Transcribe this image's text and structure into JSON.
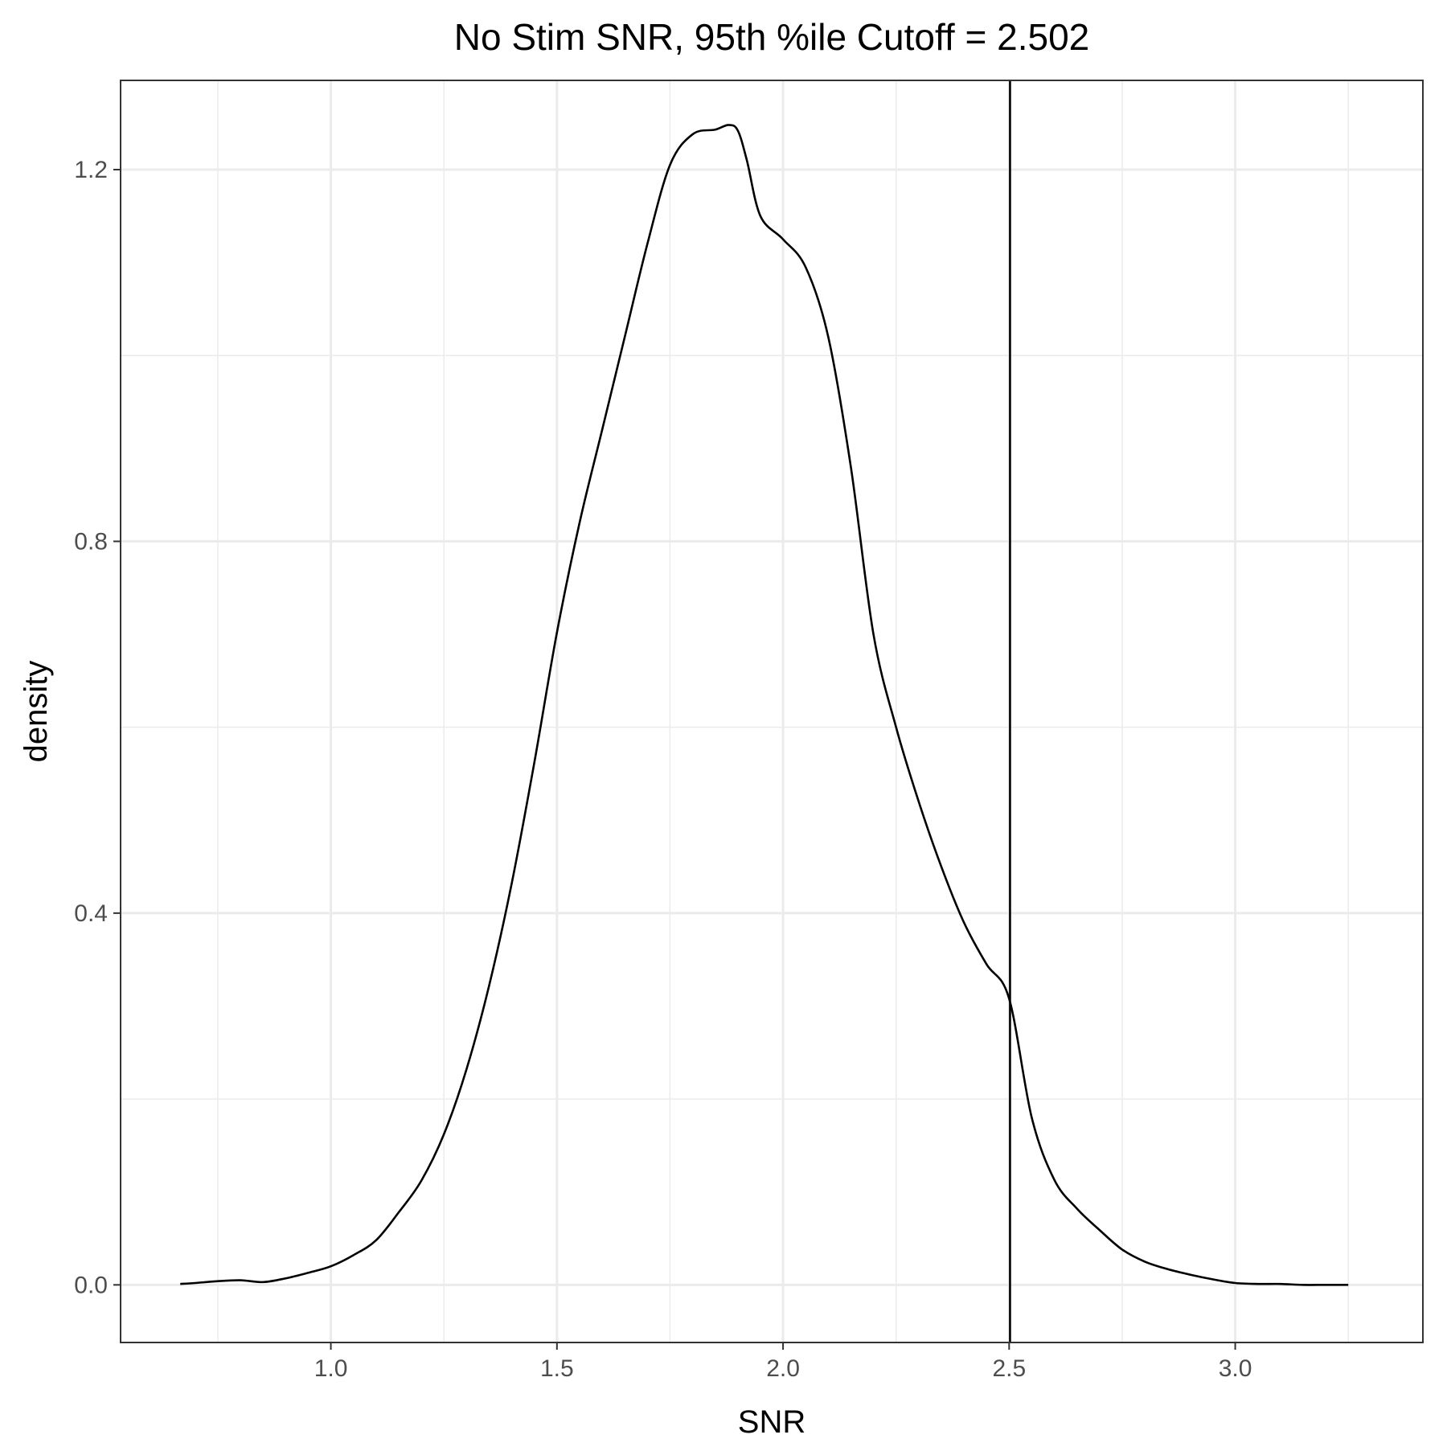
{
  "chart_data": {
    "type": "line",
    "title": "No Stim SNR, 95th %ile Cutoff =  2.502",
    "xlabel": "SNR",
    "ylabel": "density",
    "xlim": [
      0.535,
      3.415
    ],
    "ylim": [
      -0.062,
      1.296
    ],
    "x_ticks": [
      1.0,
      1.5,
      2.0,
      2.5,
      3.0
    ],
    "x_tick_labels": [
      "1.0",
      "1.5",
      "2.0",
      "2.5",
      "3.0"
    ],
    "x_minor_ticks": [
      0.75,
      1.25,
      1.75,
      2.25,
      2.75,
      3.25
    ],
    "y_ticks": [
      0.0,
      0.4,
      0.8,
      1.2
    ],
    "y_tick_labels": [
      "0.0",
      "0.4",
      "0.8",
      "1.2"
    ],
    "y_minor_ticks": [
      0.2,
      0.6,
      1.0
    ],
    "grid": true,
    "legend": "none",
    "vline": {
      "x": 2.502
    },
    "series": [
      {
        "x": [
          0.667,
          0.7,
          0.75,
          0.8,
          0.85,
          0.9,
          0.95,
          1.0,
          1.05,
          1.1,
          1.15,
          1.2,
          1.25,
          1.3,
          1.35,
          1.4,
          1.45,
          1.5,
          1.55,
          1.6,
          1.65,
          1.7,
          1.75,
          1.8,
          1.85,
          1.88,
          1.9,
          1.92,
          1.95,
          2.0,
          2.05,
          2.1,
          2.15,
          2.2,
          2.25,
          2.3,
          2.35,
          2.4,
          2.45,
          2.5,
          2.55,
          2.6,
          2.65,
          2.7,
          2.75,
          2.8,
          2.85,
          2.9,
          2.95,
          3.0,
          3.05,
          3.1,
          3.15,
          3.2,
          3.25
        ],
        "y": [
          0.001,
          0.002,
          0.004,
          0.005,
          0.003,
          0.007,
          0.013,
          0.02,
          0.032,
          0.048,
          0.078,
          0.112,
          0.162,
          0.232,
          0.322,
          0.432,
          0.562,
          0.702,
          0.82,
          0.92,
          1.02,
          1.12,
          1.205,
          1.238,
          1.243,
          1.248,
          1.242,
          1.21,
          1.15,
          1.125,
          1.095,
          1.02,
          0.88,
          0.7,
          0.6,
          0.52,
          0.45,
          0.39,
          0.345,
          0.308,
          0.18,
          0.113,
          0.082,
          0.059,
          0.038,
          0.025,
          0.017,
          0.011,
          0.006,
          0.002,
          0.001,
          0.001,
          0.0,
          0.0,
          0.0
        ]
      }
    ]
  }
}
